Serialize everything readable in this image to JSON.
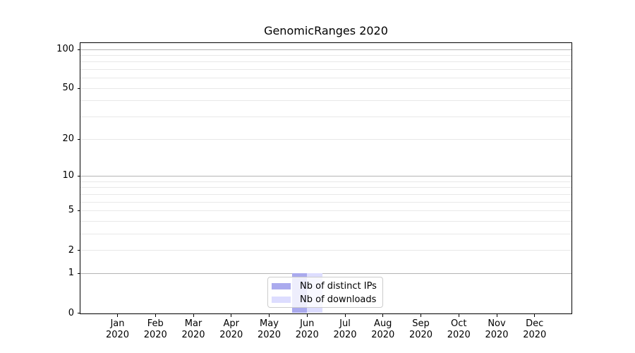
{
  "chart_data": {
    "type": "bar",
    "title": "GenomicRanges 2020",
    "x_categories": [
      {
        "month": "Jan",
        "year": "2020"
      },
      {
        "month": "Feb",
        "year": "2020"
      },
      {
        "month": "Mar",
        "year": "2020"
      },
      {
        "month": "Apr",
        "year": "2020"
      },
      {
        "month": "May",
        "year": "2020"
      },
      {
        "month": "Jun",
        "year": "2020"
      },
      {
        "month": "Jul",
        "year": "2020"
      },
      {
        "month": "Aug",
        "year": "2020"
      },
      {
        "month": "Sep",
        "year": "2020"
      },
      {
        "month": "Oct",
        "year": "2020"
      },
      {
        "month": "Nov",
        "year": "2020"
      },
      {
        "month": "Dec",
        "year": "2020"
      }
    ],
    "series": [
      {
        "name": "Nb of distinct IPs",
        "color": "#aaaaee",
        "values": [
          0,
          0,
          0,
          0,
          0,
          1,
          0,
          0,
          0,
          0,
          0,
          0
        ]
      },
      {
        "name": "Nb of downloads",
        "color": "#ddddff",
        "values": [
          0,
          0,
          0,
          0,
          0,
          1,
          0,
          0,
          0,
          0,
          0,
          0
        ]
      }
    ],
    "y_axis": {
      "scale": "log1p",
      "lim": [
        0,
        100
      ],
      "ticks": [
        0,
        1,
        2,
        5,
        10,
        20,
        50,
        100
      ],
      "major_gridlines": [
        1,
        10,
        100
      ],
      "minor_gridlines": [
        2,
        3,
        4,
        5,
        6,
        7,
        8,
        9,
        20,
        30,
        40,
        50,
        60,
        70,
        80,
        90
      ]
    },
    "grid": true,
    "legend_position": "bottom-center",
    "colors": {
      "frame": "#000000",
      "text": "#000000",
      "major_grid": "#b4b4b4",
      "minor_grid": "#e8e8e8"
    }
  }
}
